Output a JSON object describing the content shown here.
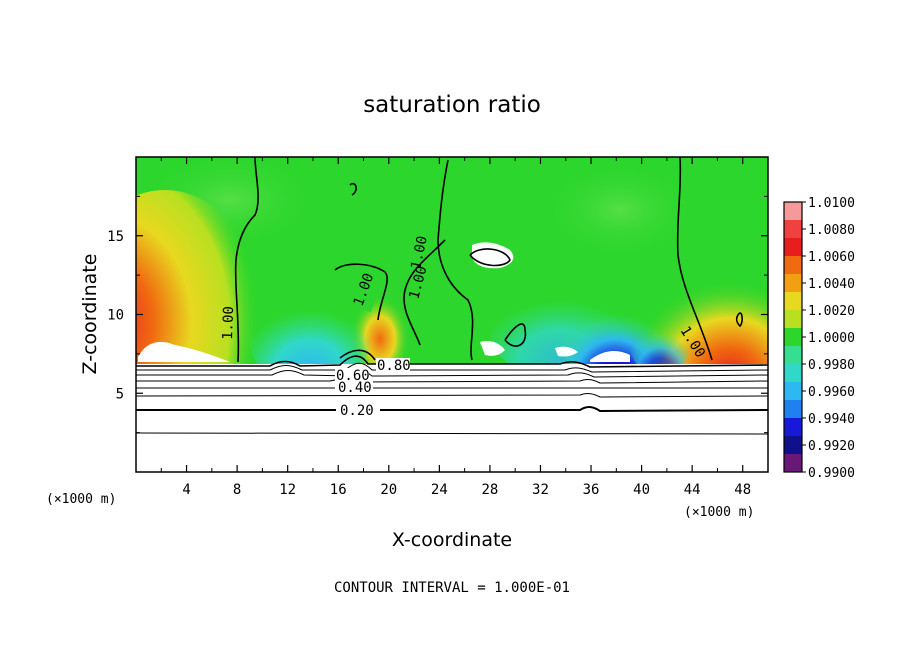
{
  "chart_data": {
    "type": "heatmap",
    "title": "saturation ratio",
    "xlabel": "X-coordinate",
    "ylabel": "Z-coordinate",
    "x_unit_left": "(×1000 m)",
    "x_unit_right": "(×1000 m)",
    "xlim": [
      0,
      50
    ],
    "ylim": [
      0,
      20
    ],
    "x_ticks": [
      4,
      8,
      12,
      16,
      20,
      24,
      28,
      32,
      36,
      40,
      44,
      48
    ],
    "x_tick_labels": [
      "4",
      "8",
      "12",
      "16",
      "20",
      "24",
      "28",
      "32",
      "36",
      "40",
      "44",
      "48"
    ],
    "y_ticks": [
      5,
      10,
      15
    ],
    "y_tick_labels": [
      "5",
      "10",
      "15"
    ],
    "colorbar": {
      "min": 0.99,
      "max": 1.01,
      "labels": [
        "1.0100",
        "1.0080",
        "1.0060",
        "1.0040",
        "1.0020",
        "1.0000",
        "0.9980",
        "0.9960",
        "0.9940",
        "0.9920",
        "0.9900"
      ],
      "colors": [
        "#f49a9a",
        "#f04040",
        "#e81e1e",
        "#f06a10",
        "#f0a010",
        "#e8d820",
        "#b8e020",
        "#2cd62c",
        "#34e090",
        "#30d8c8",
        "#2eb8f0",
        "#2080f0",
        "#1818d8",
        "#10108a",
        "#6a1878"
      ]
    },
    "contour_labels": [
      "1.00",
      "1.00",
      "1.00",
      "1.00",
      "1.00",
      "0.80",
      "0.60",
      "0.40",
      "0.20"
    ],
    "footer": "CONTOUR INTERVAL = 1.000E-01",
    "cloud_base_z": 7.0
  }
}
